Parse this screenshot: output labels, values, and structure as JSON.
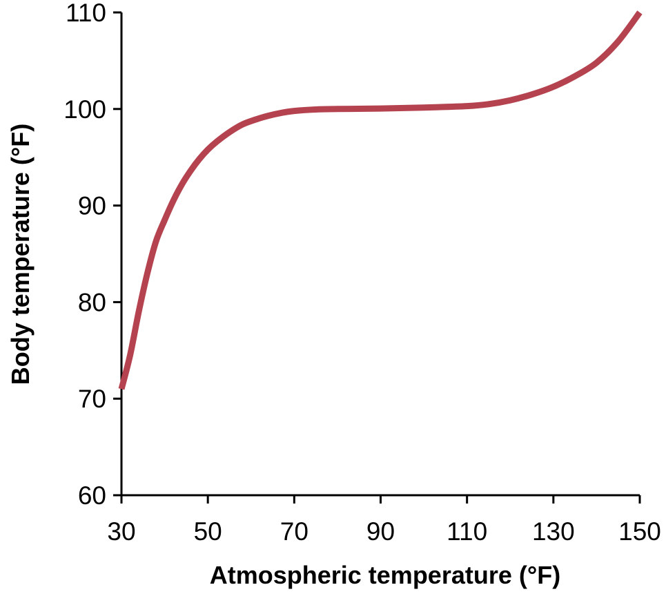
{
  "chart_data": {
    "type": "line",
    "title": "",
    "xlabel": "Atmospheric temperature (°F)",
    "ylabel": "Body temperature (°F)",
    "xlim": [
      30,
      150
    ],
    "ylim": [
      60,
      110
    ],
    "xticks": [
      30,
      50,
      70,
      90,
      110,
      130,
      150
    ],
    "yticks": [
      60,
      70,
      80,
      90,
      100,
      110
    ],
    "grid": false,
    "legend": "none",
    "series": [
      {
        "color": "#b5434f",
        "x": [
          30,
          32,
          34,
          36,
          38,
          40,
          42,
          44,
          46,
          48,
          50,
          52,
          55,
          58,
          61,
          64,
          67,
          70,
          75,
          80,
          90,
          100,
          110,
          115,
          120,
          125,
          130,
          135,
          140,
          145,
          150
        ],
        "y": [
          71,
          74.5,
          79,
          83,
          86.3,
          88.5,
          90.5,
          92.2,
          93.6,
          94.8,
          95.8,
          96.6,
          97.6,
          98.4,
          98.9,
          99.3,
          99.6,
          99.8,
          99.95,
          100,
          100.05,
          100.15,
          100.3,
          100.5,
          100.9,
          101.5,
          102.3,
          103.4,
          104.8,
          107,
          110
        ]
      }
    ]
  }
}
